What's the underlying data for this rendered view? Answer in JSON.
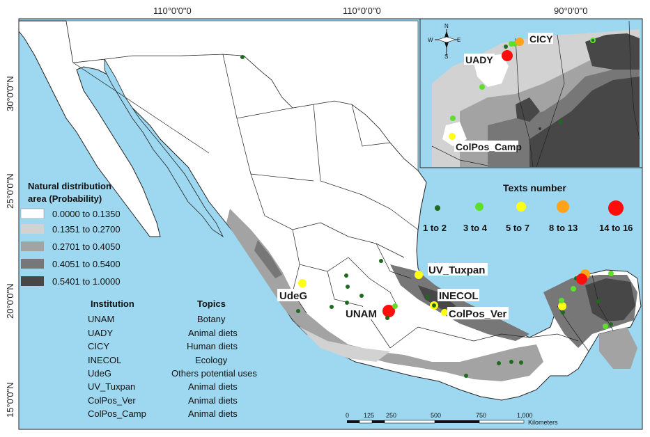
{
  "graticule": {
    "top_left": "110°0'0\"0",
    "top_center": "110°0'0\"0",
    "top_right": "90°0'0\"0",
    "lat_30": "30°0'0\"N",
    "lat_25": "25°0'0\"N",
    "lat_20": "20°0'0\"N",
    "lat_15": "15°0'0\"N"
  },
  "distribution_legend": {
    "title_line1": "Natural distribution",
    "title_line2": "area (Probability)",
    "classes": [
      {
        "label": "0.0000 to 0.1350",
        "color": "#ffffff"
      },
      {
        "label": "0.1351 to 0.2700",
        "color": "#d2d2d2"
      },
      {
        "label": "0.2701 to 0.4050",
        "color": "#a3a3a3"
      },
      {
        "label": "0.4051 to 0.5400",
        "color": "#777777"
      },
      {
        "label": "0.5401 to 1.0000",
        "color": "#474747"
      }
    ]
  },
  "institution_table": {
    "header_institution": "Institution",
    "header_topics": "Topics",
    "rows": [
      {
        "institution": "UNAM",
        "topic": "Botany"
      },
      {
        "institution": "UADY",
        "topic": "Animal diets"
      },
      {
        "institution": "CICY",
        "topic": "Human diets"
      },
      {
        "institution": "INECOL",
        "topic": "Ecology"
      },
      {
        "institution": "UdeG",
        "topic": "Others potential uses"
      },
      {
        "institution": "UV_Tuxpan",
        "topic": "Animal diets"
      },
      {
        "institution": "ColPos_Ver",
        "topic": "Animal diets"
      },
      {
        "institution": "ColPos_Camp",
        "topic": "Animal diets"
      }
    ]
  },
  "texts_legend": {
    "title": "Texts number",
    "classes": [
      {
        "label": "1 to 2",
        "color": "#1e6b1e"
      },
      {
        "label": "3 to 4",
        "color": "#5ee02b"
      },
      {
        "label": "5 to 7",
        "color": "#ffff14"
      },
      {
        "label": "8 to 13",
        "color": "#ffa31a"
      },
      {
        "label": "14 to 16",
        "color": "#ff0d0d"
      }
    ]
  },
  "map_labels": {
    "udeg": "UdeG",
    "unam": "UNAM",
    "uv_tuxpan": "UV_Tuxpan",
    "inecol": "INECOL",
    "colpos_ver": "ColPos_Ver"
  },
  "inset": {
    "uady": "UADY",
    "cicy": "CICY",
    "colpos_camp": "ColPos_Camp",
    "compass_n": "N",
    "compass_s": "S",
    "compass_e": "E",
    "compass_w": "W"
  },
  "scale_bar": {
    "ticks": [
      "0",
      "125",
      "250",
      "500",
      "750",
      "1,000"
    ],
    "unit": "Kilometers"
  },
  "colors": {
    "sea": "#9ed8f0",
    "land": "#ffffff",
    "border": "#222222"
  }
}
